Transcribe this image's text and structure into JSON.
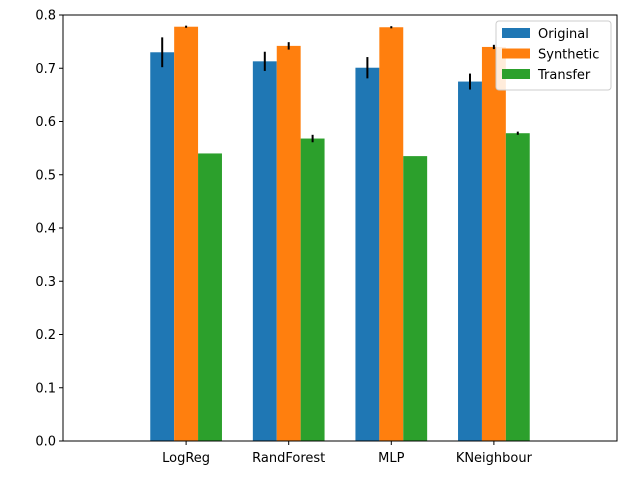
{
  "chart_data": {
    "type": "bar",
    "categories": [
      "LogReg",
      "RandForest",
      "MLP",
      "KNeighbour"
    ],
    "series": [
      {
        "name": "Original",
        "color": "#1f77b4",
        "values": [
          0.73,
          0.713,
          0.701,
          0.675
        ],
        "errors": [
          0.028,
          0.018,
          0.02,
          0.015
        ]
      },
      {
        "name": "Synthetic",
        "color": "#ff7f0e",
        "values": [
          0.778,
          0.742,
          0.777,
          0.74
        ],
        "errors": [
          0.002,
          0.007,
          0.002,
          0.004
        ]
      },
      {
        "name": "Transfer",
        "color": "#2ca02c",
        "values": [
          0.54,
          0.568,
          0.535,
          0.578
        ],
        "errors": [
          0.0,
          0.007,
          0.0,
          0.003
        ]
      }
    ],
    "ylim": [
      0,
      0.8
    ],
    "yticks": [
      "0.0",
      "0.1",
      "0.2",
      "0.3",
      "0.4",
      "0.5",
      "0.6",
      "0.7",
      "0.8"
    ],
    "legend_position": "top-right",
    "grid": false,
    "title": "",
    "xlabel": "",
    "ylabel": ""
  }
}
